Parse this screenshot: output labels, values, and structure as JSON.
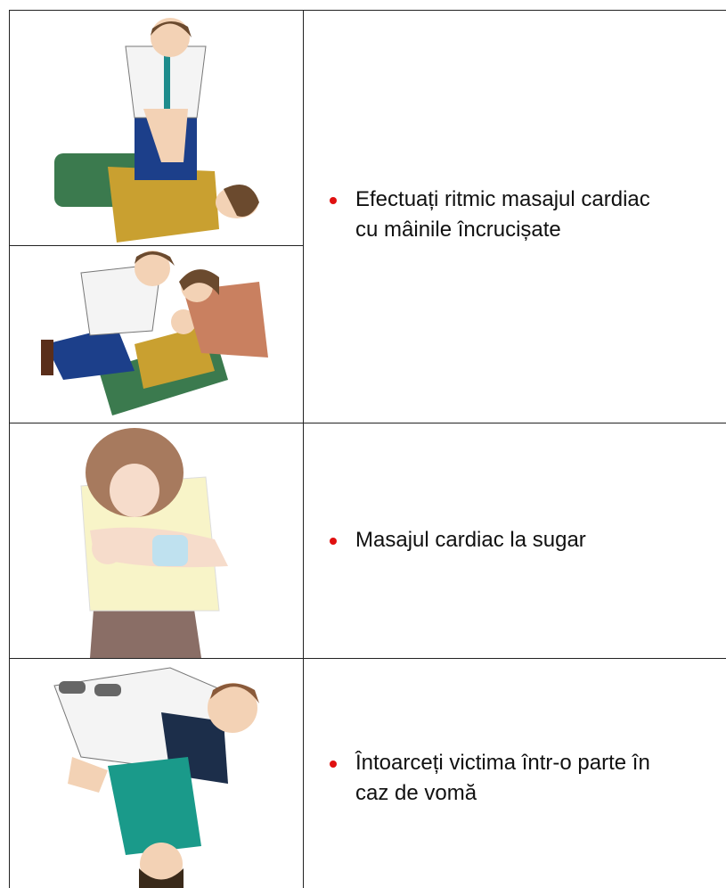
{
  "table": {
    "rows": [
      {
        "text": [
          "Efectuați ritmic masajul cardiac",
          "cu mâinile încrucișate"
        ]
      },
      {
        "text": [
          "Masajul cardiac la sugar"
        ]
      },
      {
        "text": [
          "Întoarceți victima într-o parte în",
          "caz de vomă"
        ]
      }
    ]
  }
}
